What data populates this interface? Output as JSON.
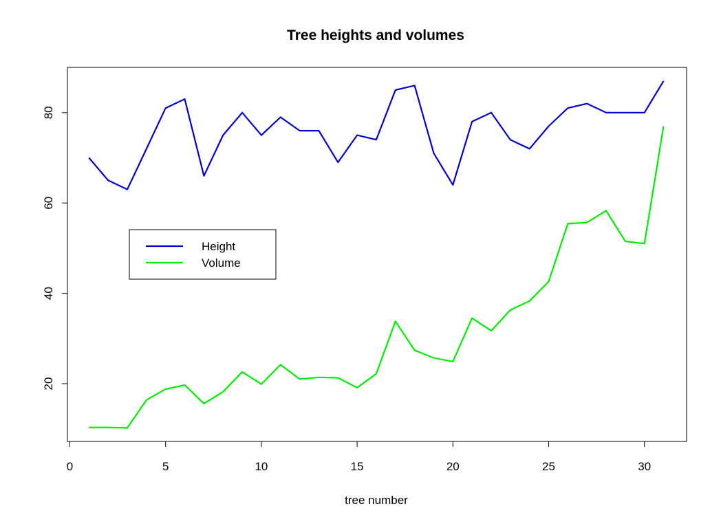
{
  "chart_data": {
    "type": "line",
    "title": "Tree heights and volumes",
    "xlabel": "tree number",
    "ylabel": "",
    "xlim": [
      0,
      32
    ],
    "ylim": [
      7,
      90
    ],
    "xticks": [
      0,
      5,
      10,
      15,
      20,
      25,
      30
    ],
    "yticks": [
      20,
      40,
      60,
      80
    ],
    "grid": false,
    "legend_position": "left",
    "x": [
      1,
      2,
      3,
      4,
      5,
      6,
      7,
      8,
      9,
      10,
      11,
      12,
      13,
      14,
      15,
      16,
      17,
      18,
      19,
      20,
      21,
      22,
      23,
      24,
      25,
      26,
      27,
      28,
      29,
      30,
      31
    ],
    "series": [
      {
        "name": "Height",
        "color": "#0000cd",
        "values": [
          70,
          65,
          63,
          72,
          81,
          83,
          66,
          75,
          80,
          75,
          79,
          76,
          76,
          69,
          75,
          74,
          85,
          86,
          71,
          64,
          78,
          80,
          74,
          72,
          77,
          81,
          82,
          80,
          80,
          80,
          87
        ]
      },
      {
        "name": "Volume",
        "color": "#00ee00",
        "values": [
          10.3,
          10.3,
          10.2,
          16.4,
          18.8,
          19.7,
          15.6,
          18.2,
          22.6,
          19.9,
          24.2,
          21.0,
          21.4,
          21.3,
          19.1,
          22.2,
          33.8,
          27.4,
          25.7,
          24.9,
          34.5,
          31.7,
          36.3,
          38.3,
          42.6,
          55.4,
          55.7,
          58.3,
          51.5,
          51.0,
          77.0
        ]
      }
    ]
  }
}
